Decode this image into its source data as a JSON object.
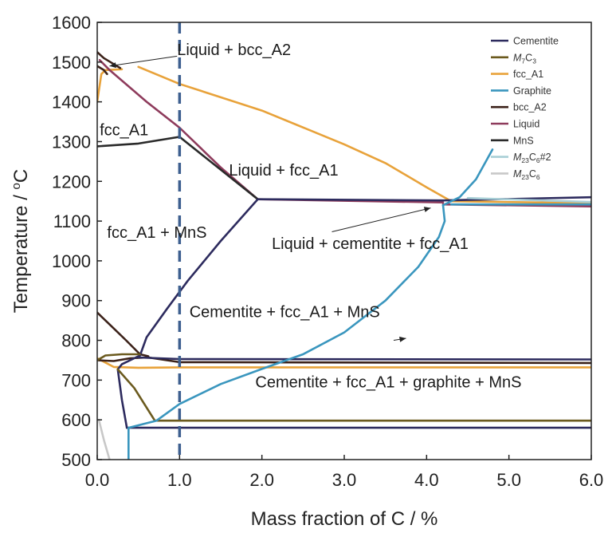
{
  "chart_data": {
    "type": "line",
    "title": "",
    "xlabel": "Mass fraction of C / %",
    "ylabel_parts": [
      "Temperature / ",
      "o",
      "C"
    ],
    "xlim": [
      0,
      6
    ],
    "ylim": [
      500,
      1600
    ],
    "x_ticks": [
      0,
      1,
      2,
      3,
      4,
      5,
      6
    ],
    "x_tick_labels": [
      "0.0",
      "1.0",
      "2.0",
      "3.0",
      "4.0",
      "5.0",
      "6.0"
    ],
    "y_ticks": [
      500,
      600,
      700,
      800,
      900,
      1000,
      1100,
      1200,
      1300,
      1400,
      1500,
      1600
    ],
    "y_tick_labels": [
      "500",
      "600",
      "700",
      "800",
      "900",
      "1000",
      "1100",
      "1200",
      "1300",
      "1400",
      "1500",
      "1600"
    ],
    "grid": false,
    "legend_position": "top-right",
    "legend": [
      {
        "parts": [
          "Cementite"
        ],
        "color": "#2d2b5e"
      },
      {
        "parts": [
          "M",
          "7",
          "C",
          "3"
        ],
        "color": "#6b5a1e"
      },
      {
        "parts": [
          "fcc_A1"
        ],
        "color": "#e8a23a"
      },
      {
        "parts": [
          "Graphite"
        ],
        "color": "#3a96be"
      },
      {
        "parts": [
          "bcc_A2"
        ],
        "color": "#3b2119"
      },
      {
        "parts": [
          "Liquid"
        ],
        "color": "#8e3b5c"
      },
      {
        "parts": [
          "MnS"
        ],
        "color": "#2a2a2a"
      },
      {
        "parts": [
          "M",
          "23",
          "C",
          "6",
          "#2"
        ],
        "color": "#a8cfd6"
      },
      {
        "parts": [
          "M",
          "23",
          "C",
          "6"
        ],
        "color": "#c8c8c8"
      }
    ],
    "reference_line": {
      "x": 1.0,
      "color": "#3d5f8f",
      "style": "dashed"
    },
    "annotations": [
      {
        "text": "Liquid + bcc_A2",
        "x": 0.97,
        "y": 1518
      },
      {
        "text": "fcc_A1",
        "x": 0.03,
        "y": 1316
      },
      {
        "text": "Liquid + fcc_A1",
        "x": 1.6,
        "y": 1215
      },
      {
        "text": "fcc_A1 + MnS",
        "x": 0.12,
        "y": 1058
      },
      {
        "text": "Liquid + cementite + fcc_A1",
        "x": 2.12,
        "y": 1030
      },
      {
        "text": "Cementite + fcc_A1 + MnS",
        "x": 1.12,
        "y": 858
      },
      {
        "text": "Cementite + fcc_A1 + graphite + MnS",
        "x": 1.92,
        "y": 682
      }
    ],
    "arrows": [
      {
        "from": [
          0.97,
          1515
        ],
        "to": [
          0.15,
          1490
        ]
      },
      {
        "from": [
          2.85,
          1073
        ],
        "to": [
          4.05,
          1133
        ]
      },
      {
        "from": [
          3.6,
          800
        ],
        "to": [
          3.75,
          805
        ]
      }
    ],
    "series": [
      {
        "color": "#e8a23a",
        "points": [
          [
            0.5,
            1488
          ],
          [
            1.0,
            1445
          ],
          [
            2.0,
            1378
          ],
          [
            3.0,
            1293
          ],
          [
            3.5,
            1246
          ],
          [
            4.0,
            1185
          ],
          [
            4.3,
            1150
          ]
        ]
      },
      {
        "color": "#e8a23a",
        "points": [
          [
            0.0,
            1400
          ],
          [
            0.05,
            1470
          ],
          [
            0.1,
            1480
          ],
          [
            0.3,
            1482
          ]
        ]
      },
      {
        "color": "#e8a23a",
        "points": [
          [
            4.3,
            1150
          ],
          [
            6.0,
            1145
          ]
        ]
      },
      {
        "color": "#e8a23a",
        "points": [
          [
            0.0,
            755
          ],
          [
            0.2,
            733
          ],
          [
            0.5,
            731
          ],
          [
            1.0,
            732
          ],
          [
            3.0,
            732
          ],
          [
            6.0,
            732
          ]
        ]
      },
      {
        "color": "#8e3b5c",
        "points": [
          [
            0.03,
            1505
          ],
          [
            0.15,
            1480
          ],
          [
            0.6,
            1400
          ],
          [
            1.0,
            1335
          ],
          [
            1.5,
            1235
          ],
          [
            1.95,
            1155
          ]
        ]
      },
      {
        "color": "#8e3b5c",
        "points": [
          [
            1.95,
            1155
          ],
          [
            4.2,
            1147
          ]
        ]
      },
      {
        "color": "#8e3b5c",
        "points": [
          [
            4.2,
            1142
          ],
          [
            6.0,
            1137
          ]
        ]
      },
      {
        "color": "#3b2119",
        "points": [
          [
            0.0,
            1525
          ],
          [
            0.08,
            1510
          ],
          [
            0.2,
            1495
          ],
          [
            0.28,
            1485
          ]
        ]
      },
      {
        "color": "#3b2119",
        "points": [
          [
            0.0,
            1490
          ],
          [
            0.08,
            1480
          ],
          [
            0.12,
            1470
          ]
        ]
      },
      {
        "color": "#3b2119",
        "points": [
          [
            0.0,
            870
          ],
          [
            0.15,
            840
          ],
          [
            0.35,
            800
          ],
          [
            0.52,
            765
          ],
          [
            0.62,
            760
          ]
        ]
      },
      {
        "color": "#3b2119",
        "points": [
          [
            0.0,
            750
          ],
          [
            0.2,
            748
          ],
          [
            0.4,
            755
          ],
          [
            0.62,
            757
          ],
          [
            1.0,
            745
          ],
          [
            6.0,
            743
          ]
        ]
      },
      {
        "color": "#2a2a2a",
        "points": [
          [
            0.0,
            1288
          ],
          [
            0.5,
            1295
          ],
          [
            1.0,
            1312
          ]
        ]
      },
      {
        "color": "#2a2a2a",
        "points": [
          [
            1.0,
            1312
          ],
          [
            1.95,
            1155
          ]
        ]
      },
      {
        "color": "#2d2b5e",
        "points": [
          [
            1.95,
            1155
          ],
          [
            1.5,
            1050
          ],
          [
            1.1,
            950
          ],
          [
            0.85,
            880
          ],
          [
            0.6,
            808
          ],
          [
            0.52,
            762
          ]
        ]
      },
      {
        "color": "#2d2b5e",
        "points": [
          [
            1.95,
            1155
          ],
          [
            4.2,
            1152
          ],
          [
            6.0,
            1160
          ]
        ]
      },
      {
        "color": "#2d2b5e",
        "points": [
          [
            0.52,
            762
          ],
          [
            0.3,
            740
          ],
          [
            0.25,
            727
          ]
        ]
      },
      {
        "color": "#2d2b5e",
        "points": [
          [
            0.25,
            727
          ],
          [
            0.3,
            650
          ],
          [
            0.36,
            580
          ]
        ]
      },
      {
        "color": "#2d2b5e",
        "points": [
          [
            0.36,
            580
          ],
          [
            1.0,
            580
          ],
          [
            6.0,
            580
          ]
        ]
      },
      {
        "color": "#2d2b5e",
        "points": [
          [
            0.5,
            757
          ],
          [
            1.0,
            753
          ],
          [
            6.0,
            752
          ]
        ]
      },
      {
        "color": "#6b5a1e",
        "points": [
          [
            0.0,
            750
          ],
          [
            0.1,
            762
          ],
          [
            0.3,
            765
          ],
          [
            0.52,
            765
          ]
        ]
      },
      {
        "color": "#6b5a1e",
        "points": [
          [
            0.25,
            727
          ],
          [
            0.45,
            680
          ],
          [
            0.7,
            598
          ]
        ]
      },
      {
        "color": "#6b5a1e",
        "points": [
          [
            0.7,
            598
          ],
          [
            6.0,
            598
          ]
        ]
      },
      {
        "color": "#3a96be",
        "points": [
          [
            0.38,
            500
          ],
          [
            0.38,
            580
          ],
          [
            0.72,
            598
          ],
          [
            1.0,
            640
          ],
          [
            1.5,
            690
          ],
          [
            2.0,
            728
          ],
          [
            2.5,
            765
          ],
          [
            3.0,
            820
          ],
          [
            3.5,
            900
          ],
          [
            3.9,
            985
          ],
          [
            4.15,
            1060
          ],
          [
            4.22,
            1100
          ],
          [
            4.2,
            1140
          ]
        ]
      },
      {
        "color": "#3a96be",
        "points": [
          [
            4.2,
            1140
          ],
          [
            4.4,
            1160
          ],
          [
            4.6,
            1205
          ],
          [
            4.8,
            1280
          ]
        ]
      },
      {
        "color": "#3a96be",
        "points": [
          [
            4.3,
            1142
          ],
          [
            6.0,
            1142
          ]
        ]
      },
      {
        "color": "#a8cfd6",
        "points": [
          [
            4.5,
            1158
          ],
          [
            6.0,
            1148
          ]
        ]
      },
      {
        "color": "#c8c8c8",
        "points": [
          [
            0.02,
            600
          ],
          [
            0.08,
            550
          ],
          [
            0.15,
            500
          ]
        ]
      }
    ]
  }
}
